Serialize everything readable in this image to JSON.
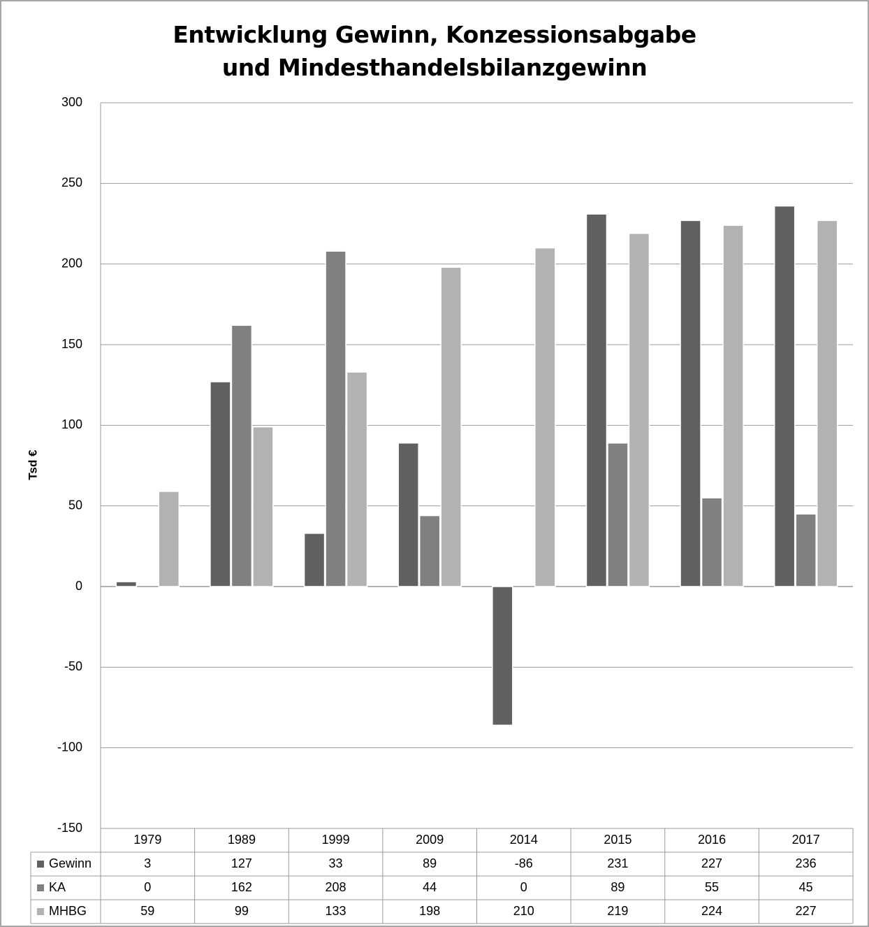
{
  "chart_data": {
    "type": "bar",
    "title": "Entwicklung Gewinn, Konzessionsabgabe und Mindesthandelsbilanzgewinn",
    "y_label": "Tsd €",
    "categories": [
      "1979",
      "1989",
      "1999",
      "2009",
      "2014",
      "2015",
      "2016",
      "2017"
    ],
    "series": [
      {
        "name": "Gewinn",
        "color": "#606060",
        "values": [
          3,
          127,
          33,
          89,
          -86,
          231,
          227,
          236
        ]
      },
      {
        "name": "KA",
        "color": "#808080",
        "values": [
          0,
          162,
          208,
          44,
          0,
          89,
          55,
          45
        ]
      },
      {
        "name": "MHBG",
        "color": "#b2b2b2",
        "values": [
          59,
          99,
          133,
          198,
          210,
          219,
          224,
          227
        ]
      }
    ],
    "ylim": [
      -150,
      300
    ],
    "yticks": [
      -150,
      -100,
      -50,
      0,
      50,
      100,
      150,
      200,
      250,
      300
    ],
    "negative_tick_color": "#ff0000",
    "grid": true,
    "data_table": true
  }
}
